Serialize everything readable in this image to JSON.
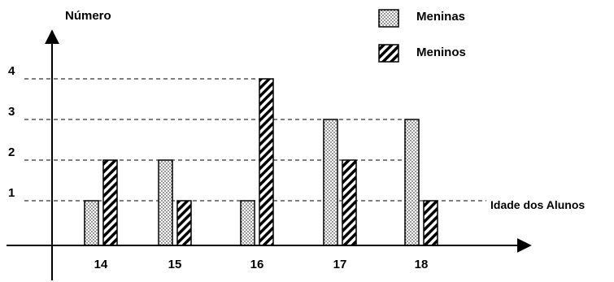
{
  "chart_data": {
    "type": "bar",
    "ylabel": "Número",
    "xlabel": "Idade dos Alunos",
    "categories": [
      "14",
      "15",
      "16",
      "17",
      "18"
    ],
    "yticks": [
      1,
      2,
      3,
      4
    ],
    "ylim": [
      0,
      4
    ],
    "grid": "dashed lines at y ticks",
    "legend_position": "top-right",
    "series": [
      {
        "name": "Meninas",
        "pattern": "dots",
        "values": [
          1,
          2,
          1,
          3,
          3
        ]
      },
      {
        "name": "Meninos",
        "pattern": "diagonal-stripes",
        "values": [
          2,
          1,
          4,
          2,
          1
        ]
      }
    ],
    "colors": {
      "ink": "#000000",
      "background": "#ffffff"
    }
  }
}
